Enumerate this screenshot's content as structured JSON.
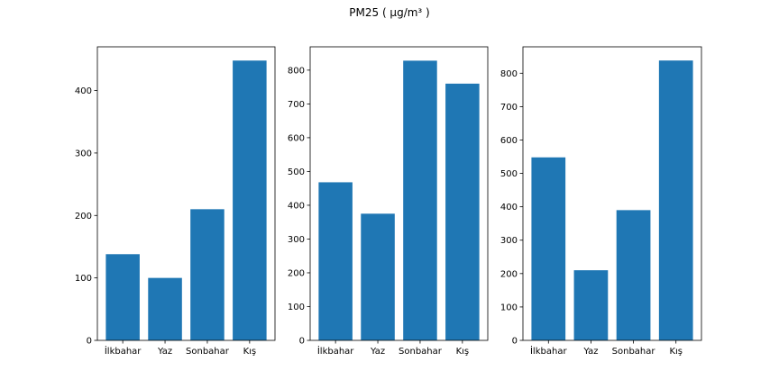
{
  "suptitle": "PM25 ( µg/m³ )",
  "colors": {
    "bar": "#1f77b4",
    "axis": "#000000",
    "background": "#ffffff"
  },
  "chart_data": [
    {
      "type": "bar",
      "categories": [
        "İlkbahar",
        "Yaz",
        "Sonbahar",
        "Kış"
      ],
      "values": [
        138,
        100,
        210,
        448
      ],
      "ylim": [
        0,
        470
      ],
      "yticks": [
        0,
        100,
        200,
        300,
        400
      ],
      "grid": false,
      "title": "",
      "xlabel": "",
      "ylabel": ""
    },
    {
      "type": "bar",
      "categories": [
        "İlkbahar",
        "Yaz",
        "Sonbahar",
        "Kış"
      ],
      "values": [
        468,
        375,
        828,
        760
      ],
      "ylim": [
        0,
        869
      ],
      "yticks": [
        0,
        100,
        200,
        300,
        400,
        500,
        600,
        700,
        800
      ],
      "grid": false,
      "title": "",
      "xlabel": "",
      "ylabel": ""
    },
    {
      "type": "bar",
      "categories": [
        "İlkbahar",
        "Yaz",
        "Sonbahar",
        "Kış"
      ],
      "values": [
        548,
        210,
        390,
        838
      ],
      "ylim": [
        0,
        879
      ],
      "yticks": [
        0,
        100,
        200,
        300,
        400,
        500,
        600,
        700,
        800
      ],
      "grid": false,
      "title": "",
      "xlabel": "",
      "ylabel": ""
    }
  ]
}
